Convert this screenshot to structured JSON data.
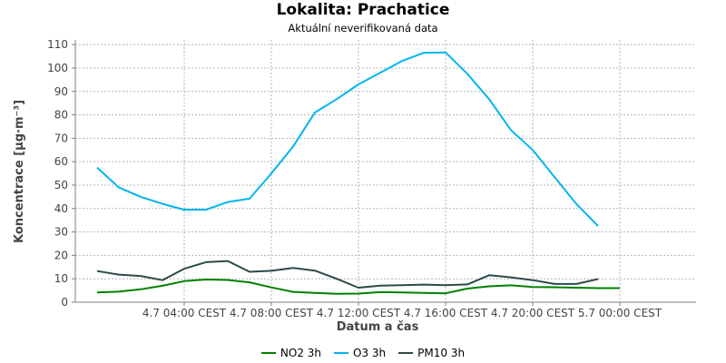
{
  "title": "Lokalita: Prachatice",
  "subtitle": "Aktuální neverifikovaná data",
  "chart_data": {
    "type": "line",
    "xlabel": "Datum a čas",
    "ylabel": "Koncentrace [µg·m⁻³]",
    "ylim": [
      0,
      112
    ],
    "yticks": [
      0,
      10,
      20,
      30,
      40,
      50,
      60,
      70,
      80,
      90,
      100,
      110
    ],
    "xlim_hours": [
      -1,
      27.5
    ],
    "xticks": [
      {
        "hour": 4,
        "label": "4.7 04:00 CEST"
      },
      {
        "hour": 8,
        "label": "4.7 08:00 CEST"
      },
      {
        "hour": 12,
        "label": "4.7 12:00 CEST"
      },
      {
        "hour": 16,
        "label": "4.7 16:00 CEST"
      },
      {
        "hour": 20,
        "label": "4.7 20:00 CEST"
      },
      {
        "hour": 24,
        "label": "5.7 00:00 CEST"
      }
    ],
    "grid": true,
    "legend_position": "bottom",
    "x_hours": [
      0,
      1,
      2,
      3,
      4,
      5,
      6,
      7,
      8,
      9,
      10,
      11,
      12,
      13,
      14,
      15,
      16,
      17,
      18,
      19,
      20,
      21,
      22,
      23,
      24
    ],
    "series": [
      {
        "name": "NO2 3h",
        "color": "#008000",
        "values": [
          4.2,
          4.5,
          5.5,
          7.0,
          9.0,
          9.7,
          9.5,
          8.5,
          6.3,
          4.4,
          4.0,
          3.6,
          3.7,
          4.3,
          4.2,
          4.0,
          3.8,
          5.8,
          6.8,
          7.2,
          6.5,
          6.4,
          6.2,
          6.0,
          6.0
        ]
      },
      {
        "name": "O3 3h",
        "color": "#00b4f0",
        "values": [
          57.5,
          49.0,
          45.0,
          42.0,
          39.5,
          39.5,
          42.8,
          44.2,
          55.0,
          66.5,
          81.0,
          86.7,
          93.0,
          98.0,
          103.0,
          106.5,
          106.7,
          97.5,
          86.7,
          73.5,
          65.0,
          53.5,
          42.0,
          32.5,
          null
        ]
      },
      {
        "name": "PM10 3h",
        "color": "#2b4a4a",
        "values": [
          13.3,
          11.8,
          11.2,
          9.4,
          14.3,
          17.1,
          17.6,
          13.0,
          13.4,
          14.6,
          13.5,
          10.0,
          6.2,
          7.1,
          7.3,
          7.5,
          7.3,
          7.6,
          11.5,
          10.6,
          9.4,
          7.8,
          7.8,
          9.9,
          null
        ]
      }
    ]
  }
}
